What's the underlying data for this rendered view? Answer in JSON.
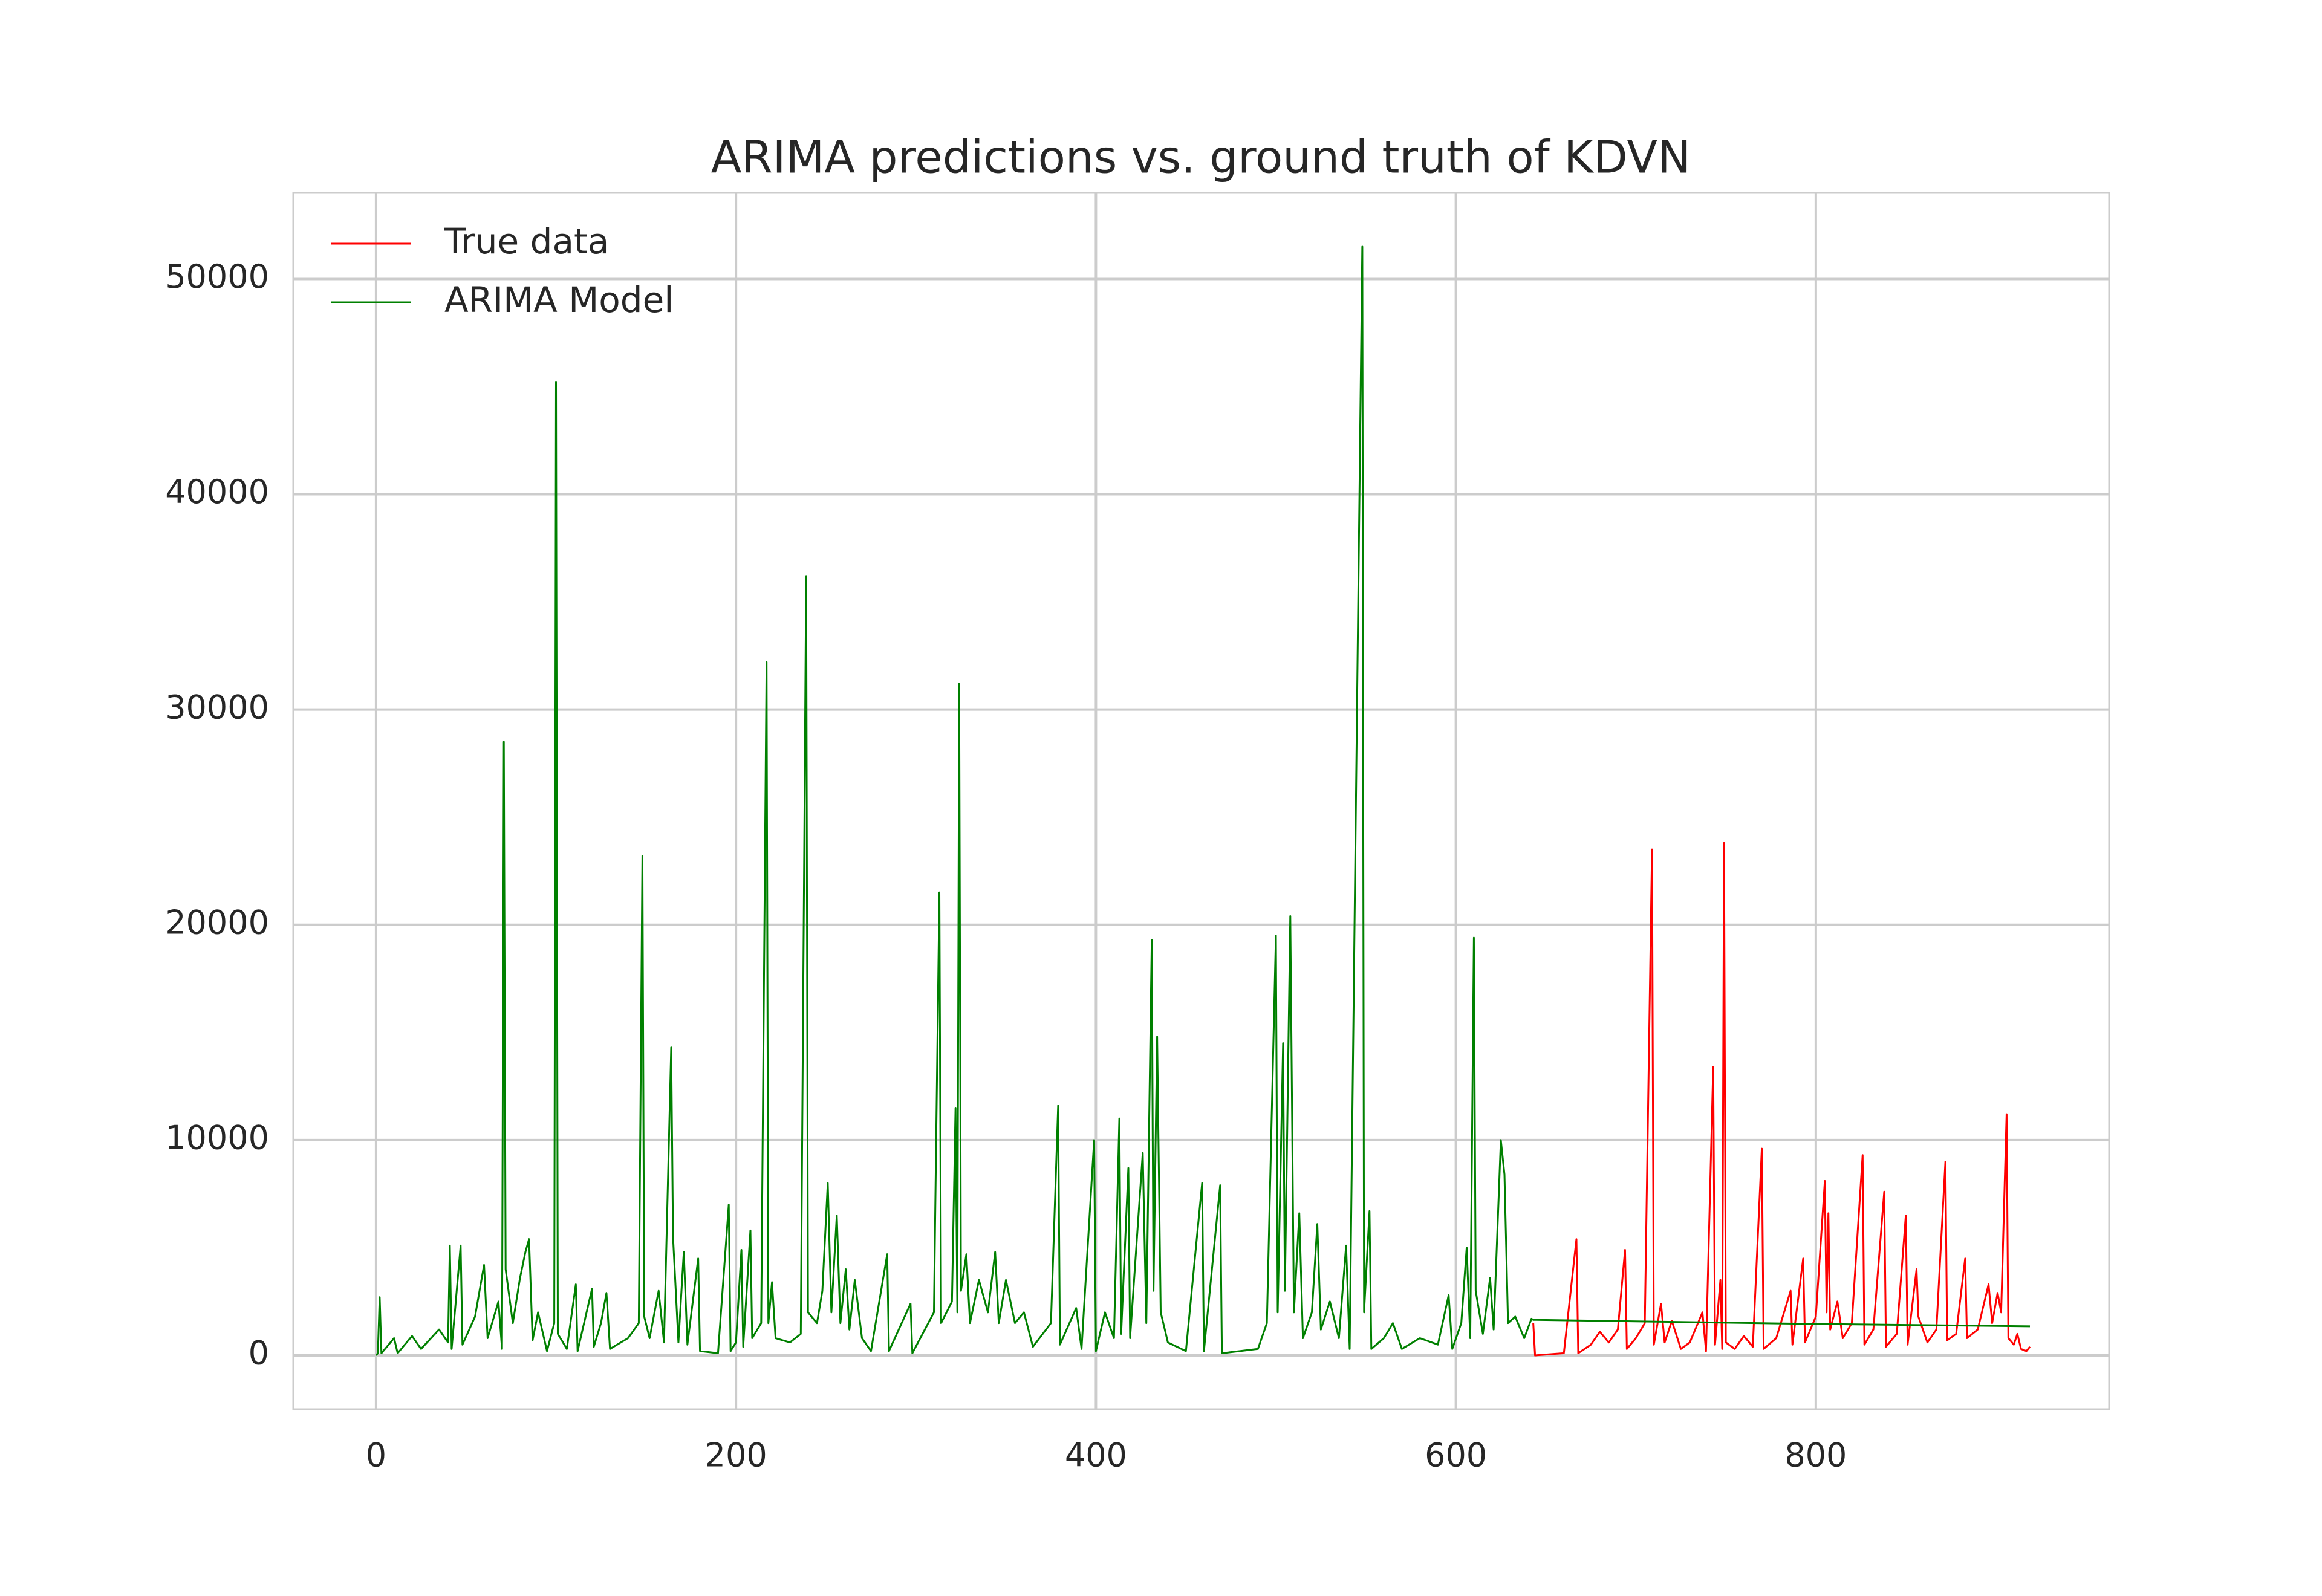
{
  "chart_data": {
    "type": "line",
    "title": "ARIMA predictions vs. ground truth of KDVN",
    "xlim": [
      -46,
      963
    ],
    "ylim": [
      -2500,
      54000
    ],
    "xticks": [
      0,
      200,
      400,
      600,
      800
    ],
    "yticks": [
      0,
      10000,
      20000,
      30000,
      40000,
      50000
    ],
    "grid": true,
    "legend": "upper left",
    "series": [
      {
        "name": "True data",
        "color": "#ff0000",
        "x": [
          643,
          644,
          660,
          667,
          668,
          675,
          680,
          685,
          690,
          694,
          695,
          700,
          705,
          709,
          710,
          714,
          716,
          720,
          725,
          730,
          737,
          739,
          743,
          744,
          747,
          748,
          749,
          750,
          755,
          760,
          765,
          770,
          771,
          778,
          786,
          787,
          793,
          794,
          800,
          805,
          806,
          807,
          808,
          812,
          815,
          820,
          826,
          827,
          832,
          838,
          839,
          845,
          850,
          851,
          856,
          857,
          862,
          867,
          872,
          873,
          878,
          883,
          884,
          890,
          896,
          898,
          901,
          903,
          906,
          907,
          910,
          912,
          914,
          917,
          919
        ],
        "values": [
          1500,
          0,
          100,
          5400,
          100,
          500,
          1100,
          600,
          1200,
          4900,
          300,
          800,
          1500,
          23500,
          500,
          2400,
          600,
          1600,
          300,
          600,
          2000,
          200,
          13400,
          500,
          3500,
          300,
          23800,
          600,
          300,
          900,
          400,
          9600,
          300,
          800,
          3000,
          500,
          4500,
          600,
          1800,
          8100,
          2000,
          6600,
          1200,
          2500,
          800,
          1500,
          9300,
          500,
          1200,
          7600,
          400,
          1000,
          6500,
          500,
          4000,
          1800,
          600,
          1200,
          9000,
          700,
          1000,
          4500,
          800,
          1200,
          3300,
          1500,
          2900,
          2000,
          11200,
          800,
          500,
          1000,
          300,
          200,
          400
        ]
      },
      {
        "name": "ARIMA Model",
        "color": "#008000",
        "x": [
          0,
          1,
          2,
          3,
          10,
          12,
          20,
          25,
          35,
          40,
          41,
          42,
          47,
          48,
          55,
          60,
          62,
          68,
          70,
          71,
          72,
          76,
          80,
          83,
          85,
          87,
          90,
          95,
          99,
          100,
          101,
          106,
          111,
          112,
          120,
          121,
          125,
          128,
          130,
          140,
          146,
          148,
          149,
          152,
          157,
          160,
          164,
          165,
          168,
          171,
          173,
          179,
          180,
          190,
          196,
          197,
          200,
          203,
          204,
          208,
          209,
          214,
          217,
          218,
          220,
          222,
          230,
          236,
          239,
          240,
          245,
          248,
          251,
          253,
          256,
          258,
          261,
          263,
          266,
          270,
          275,
          284,
          285,
          297,
          298,
          310,
          313,
          314,
          320,
          322,
          323,
          324,
          325,
          328,
          330,
          335,
          340,
          344,
          346,
          350,
          355,
          360,
          365,
          375,
          379,
          380,
          389,
          392,
          399,
          400,
          405,
          410,
          413,
          414,
          418,
          419,
          426,
          428,
          431,
          432,
          434,
          436,
          440,
          450,
          459,
          460,
          469,
          470,
          480,
          490,
          495,
          500,
          501,
          504,
          505,
          508,
          510,
          513,
          515,
          520,
          523,
          525,
          530,
          535,
          539,
          541,
          548,
          549,
          552,
          553,
          560,
          565,
          570,
          580,
          590,
          596,
          598,
          603,
          606,
          608,
          610,
          611,
          615,
          619,
          621,
          625,
          627,
          629,
          633,
          638,
          642,
          643,
          700,
          800,
          919
        ],
        "values": [
          0,
          100,
          2700,
          100,
          800,
          100,
          900,
          300,
          1200,
          600,
          5100,
          300,
          5100,
          500,
          1800,
          4200,
          800,
          2500,
          300,
          28500,
          4000,
          1500,
          3600,
          4800,
          5400,
          700,
          2000,
          200,
          1500,
          45200,
          1000,
          300,
          3300,
          200,
          3100,
          400,
          1500,
          2900,
          300,
          800,
          1500,
          23200,
          1800,
          800,
          3000,
          600,
          14300,
          5500,
          600,
          4800,
          500,
          4500,
          200,
          100,
          7000,
          200,
          600,
          4900,
          400,
          5800,
          800,
          1500,
          32200,
          1500,
          3400,
          800,
          600,
          1000,
          36200,
          2000,
          1500,
          3000,
          8000,
          2000,
          6500,
          1500,
          4000,
          1200,
          3500,
          800,
          200,
          4700,
          200,
          2400,
          100,
          2000,
          21500,
          1500,
          2500,
          11500,
          2000,
          31200,
          3000,
          4700,
          1500,
          3500,
          2000,
          4800,
          1500,
          3500,
          1500,
          2000,
          400,
          1500,
          11600,
          500,
          2200,
          300,
          10000,
          200,
          2000,
          800,
          11000,
          1000,
          8700,
          800,
          9400,
          1500,
          19300,
          3000,
          14800,
          2000,
          600,
          200,
          8000,
          200,
          7900,
          100,
          200,
          300,
          1500,
          19500,
          2000,
          14500,
          3000,
          20400,
          2000,
          6600,
          800,
          2000,
          6100,
          1200,
          2500,
          800,
          5100,
          300,
          51500,
          2000,
          6700,
          300,
          800,
          1500,
          300,
          800,
          500,
          2800,
          300,
          1500,
          5000,
          800,
          19400,
          3000,
          1000,
          3600,
          1200,
          10000,
          8400,
          1500,
          1800,
          800,
          1700,
          1650,
          1580,
          1460,
          1350
        ]
      }
    ]
  }
}
